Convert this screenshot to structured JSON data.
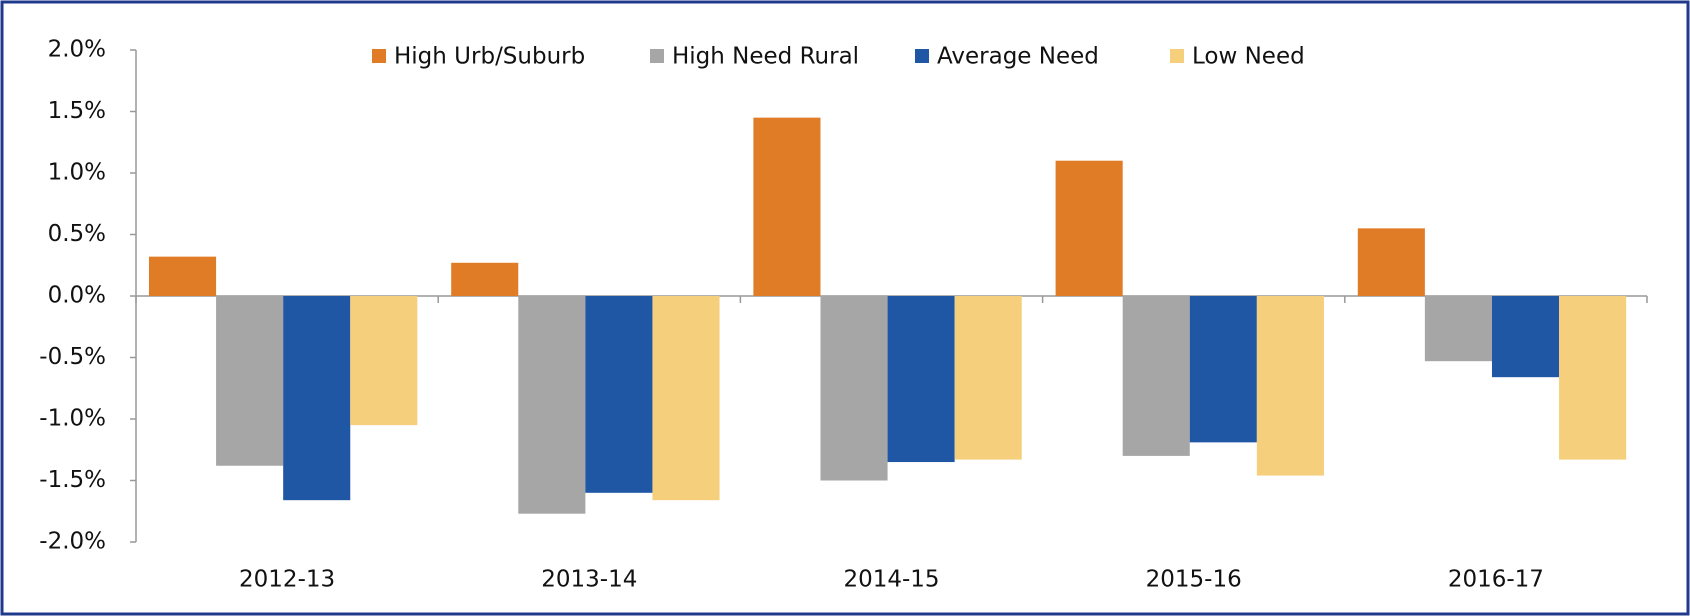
{
  "chart_data": {
    "type": "bar",
    "categories": [
      "2012-13",
      "2013-14",
      "2014-15",
      "2015-16",
      "2016-17"
    ],
    "series": [
      {
        "name": "High Urb/Suburb",
        "color": "#e07c26",
        "values": [
          0.32,
          0.27,
          1.45,
          1.1,
          0.55
        ]
      },
      {
        "name": "High Need Rural",
        "color": "#a6a6a6",
        "values": [
          -1.38,
          -1.77,
          -1.5,
          -1.3,
          -0.53
        ]
      },
      {
        "name": "Average Need",
        "color": "#1f57a4",
        "values": [
          -1.66,
          -1.6,
          -1.35,
          -1.19,
          -0.66
        ]
      },
      {
        "name": "Low Need",
        "color": "#f6cf7d",
        "values": [
          -1.05,
          -1.66,
          -1.33,
          -1.46,
          -1.33
        ]
      }
    ],
    "ylim": [
      -2.0,
      2.0
    ],
    "yticks": [
      {
        "value": -2.0,
        "label": "-2.0%"
      },
      {
        "value": -1.5,
        "label": "-1.5%"
      },
      {
        "value": -1.0,
        "label": "-1.0%"
      },
      {
        "value": -0.5,
        "label": "-0.5%"
      },
      {
        "value": 0.0,
        "label": "0.0%"
      },
      {
        "value": 0.5,
        "label": "0.5%"
      },
      {
        "value": 1.0,
        "label": "1.0%"
      },
      {
        "value": 1.5,
        "label": "1.5%"
      },
      {
        "value": 2.0,
        "label": "2.0%"
      }
    ],
    "grid": false,
    "legend": "top"
  }
}
